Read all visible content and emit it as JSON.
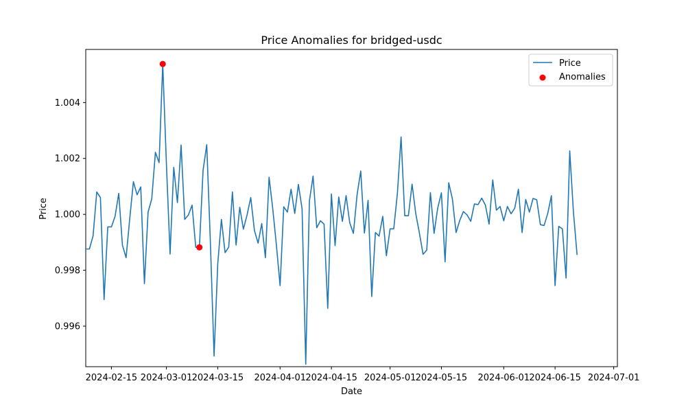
{
  "chart_data": {
    "type": "line",
    "title": "Price Anomalies for bridged-usdc",
    "xlabel": "Date",
    "ylabel": "Price",
    "xlim": [
      "2024-02-08",
      "2024-07-02"
    ],
    "ylim": [
      0.99455,
      1.0059
    ],
    "x_ticks": [
      "2024-02-15",
      "2024-03-01",
      "2024-03-15",
      "2024-04-01",
      "2024-04-15",
      "2024-05-01",
      "2024-05-15",
      "2024-06-01",
      "2024-06-15",
      "2024-07-01"
    ],
    "y_ticks": [
      0.996,
      0.998,
      1.0,
      1.002,
      1.004
    ],
    "y_tick_labels": [
      "0.996",
      "0.998",
      "1.000",
      "1.002",
      "1.004"
    ],
    "legend_position": "top-right",
    "grid": false,
    "series": [
      {
        "name": "Price",
        "color": "#1f77b4",
        "points": [
          [
            "2024-02-08",
            0.99876
          ],
          [
            "2024-02-09",
            0.99876
          ],
          [
            "2024-02-10",
            0.99923
          ],
          [
            "2024-02-11",
            1.0008
          ],
          [
            "2024-02-12",
            1.0006
          ],
          [
            "2024-02-13",
            0.99695
          ],
          [
            "2024-02-14",
            0.99955
          ],
          [
            "2024-02-15",
            0.99955
          ],
          [
            "2024-02-16",
            0.99993
          ],
          [
            "2024-02-17",
            1.00075
          ],
          [
            "2024-02-18",
            0.9989
          ],
          [
            "2024-02-19",
            0.99845
          ],
          [
            "2024-02-20",
            0.99985
          ],
          [
            "2024-02-21",
            1.00117
          ],
          [
            "2024-02-22",
            1.0007
          ],
          [
            "2024-02-23",
            1.00098
          ],
          [
            "2024-02-24",
            0.99752
          ],
          [
            "2024-02-25",
            1.00008
          ],
          [
            "2024-02-26",
            1.00055
          ],
          [
            "2024-02-27",
            1.00222
          ],
          [
            "2024-02-28",
            1.00185
          ],
          [
            "2024-02-29",
            1.00538
          ],
          [
            "2024-03-01",
            1.0018
          ],
          [
            "2024-03-02",
            0.99858
          ],
          [
            "2024-03-03",
            1.00168
          ],
          [
            "2024-03-04",
            1.00042
          ],
          [
            "2024-03-05",
            1.00248
          ],
          [
            "2024-03-06",
            0.99982
          ],
          [
            "2024-03-07",
            0.99998
          ],
          [
            "2024-03-08",
            1.00033
          ],
          [
            "2024-03-09",
            0.99882
          ],
          [
            "2024-03-10",
            0.99882
          ],
          [
            "2024-03-11",
            1.00158
          ],
          [
            "2024-03-12",
            1.00249
          ],
          [
            "2024-03-13",
            0.99897
          ],
          [
            "2024-03-14",
            0.99493
          ],
          [
            "2024-03-15",
            0.99822
          ],
          [
            "2024-03-16",
            0.99982
          ],
          [
            "2024-03-17",
            0.99863
          ],
          [
            "2024-03-18",
            0.99883
          ],
          [
            "2024-03-19",
            1.0008
          ],
          [
            "2024-03-20",
            0.9989
          ],
          [
            "2024-03-21",
            1.00025
          ],
          [
            "2024-03-22",
            0.99947
          ],
          [
            "2024-03-23",
            0.99998
          ],
          [
            "2024-03-24",
            1.0006
          ],
          [
            "2024-03-25",
            0.99943
          ],
          [
            "2024-03-26",
            0.99897
          ],
          [
            "2024-03-27",
            0.99967
          ],
          [
            "2024-03-28",
            0.99845
          ],
          [
            "2024-03-29",
            1.00133
          ],
          [
            "2024-03-30",
            1.0002
          ],
          [
            "2024-03-31",
            0.9989
          ],
          [
            "2024-04-01",
            0.99745
          ],
          [
            "2024-04-02",
            1.00027
          ],
          [
            "2024-04-03",
            1.00008
          ],
          [
            "2024-04-04",
            1.0009
          ],
          [
            "2024-04-05",
            1.00003
          ],
          [
            "2024-04-06",
            1.00107
          ],
          [
            "2024-04-07",
            1.0002
          ],
          [
            "2024-04-08",
            0.99464
          ],
          [
            "2024-04-09",
            1.00048
          ],
          [
            "2024-04-10",
            1.00137
          ],
          [
            "2024-04-11",
            0.99952
          ],
          [
            "2024-04-12",
            0.99977
          ],
          [
            "2024-04-13",
            0.99965
          ],
          [
            "2024-04-14",
            0.99664
          ],
          [
            "2024-04-15",
            1.00073
          ],
          [
            "2024-04-16",
            0.99888
          ],
          [
            "2024-04-17",
            1.00062
          ],
          [
            "2024-04-18",
            0.99975
          ],
          [
            "2024-04-19",
            1.00067
          ],
          [
            "2024-04-20",
            0.9997
          ],
          [
            "2024-04-21",
            0.99932
          ],
          [
            "2024-04-22",
            1.0007
          ],
          [
            "2024-04-23",
            1.00155
          ],
          [
            "2024-04-24",
            0.99933
          ],
          [
            "2024-04-25",
            1.0005
          ],
          [
            "2024-04-26",
            0.99706
          ],
          [
            "2024-04-27",
            0.99935
          ],
          [
            "2024-04-28",
            0.99922
          ],
          [
            "2024-04-29",
            0.99993
          ],
          [
            "2024-04-30",
            0.99852
          ],
          [
            "2024-05-01",
            0.99948
          ],
          [
            "2024-05-02",
            0.99948
          ],
          [
            "2024-05-03",
            1.00075
          ],
          [
            "2024-05-04",
            1.00277
          ],
          [
            "2024-05-05",
            0.99995
          ],
          [
            "2024-05-06",
            0.99995
          ],
          [
            "2024-05-07",
            1.00108
          ],
          [
            "2024-05-08",
            1.00003
          ],
          [
            "2024-05-09",
            0.99933
          ],
          [
            "2024-05-10",
            0.99857
          ],
          [
            "2024-05-11",
            0.99872
          ],
          [
            "2024-05-12",
            1.00078
          ],
          [
            "2024-05-13",
            0.99932
          ],
          [
            "2024-05-14",
            1.00023
          ],
          [
            "2024-05-15",
            1.00077
          ],
          [
            "2024-05-16",
            0.9983
          ],
          [
            "2024-05-17",
            1.00113
          ],
          [
            "2024-05-18",
            1.00055
          ],
          [
            "2024-05-19",
            0.99935
          ],
          [
            "2024-05-20",
            0.99978
          ],
          [
            "2024-05-21",
            1.0001
          ],
          [
            "2024-05-22",
            0.99998
          ],
          [
            "2024-05-23",
            0.99975
          ],
          [
            "2024-05-24",
            1.00037
          ],
          [
            "2024-05-25",
            1.00035
          ],
          [
            "2024-05-26",
            1.00058
          ],
          [
            "2024-05-27",
            1.00033
          ],
          [
            "2024-05-28",
            0.99965
          ],
          [
            "2024-05-29",
            1.00123
          ],
          [
            "2024-05-30",
            1.00015
          ],
          [
            "2024-05-31",
            1.00028
          ],
          [
            "2024-06-01",
            0.99977
          ],
          [
            "2024-06-02",
            1.00028
          ],
          [
            "2024-06-03",
            1.00002
          ],
          [
            "2024-06-04",
            1.00022
          ],
          [
            "2024-06-05",
            1.0009
          ],
          [
            "2024-06-06",
            0.99935
          ],
          [
            "2024-06-07",
            1.00053
          ],
          [
            "2024-06-08",
            1.00008
          ],
          [
            "2024-06-09",
            1.00057
          ],
          [
            "2024-06-10",
            1.00052
          ],
          [
            "2024-06-11",
            0.99963
          ],
          [
            "2024-06-12",
            0.9996
          ],
          [
            "2024-06-13",
            1.00003
          ],
          [
            "2024-06-14",
            1.00067
          ],
          [
            "2024-06-15",
            0.99745
          ],
          [
            "2024-06-16",
            0.99957
          ],
          [
            "2024-06-17",
            0.99948
          ],
          [
            "2024-06-18",
            0.99772
          ],
          [
            "2024-06-19",
            1.00227
          ],
          [
            "2024-06-20",
            1.0001
          ],
          [
            "2024-06-21",
            0.99855
          ]
        ]
      },
      {
        "name": "Anomalies",
        "color": "#ff0000",
        "marker": "circle",
        "points": [
          [
            "2024-02-29",
            1.00538
          ],
          [
            "2024-03-10",
            0.99882
          ]
        ]
      }
    ]
  }
}
